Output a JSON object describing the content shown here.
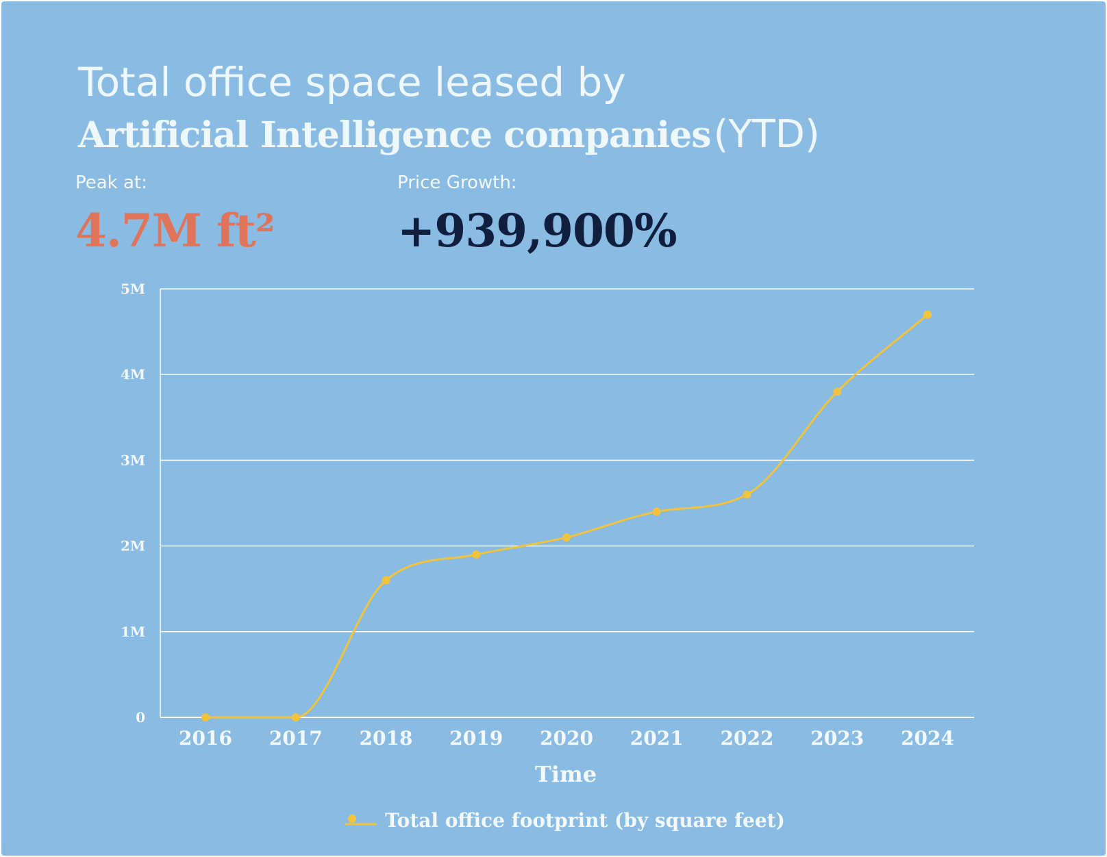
{
  "header": {
    "title_line1": "Total office space leased by",
    "title_bold": "Artificial Intelligence companies",
    "title_suffix": "(YTD)"
  },
  "stats": {
    "peak_label": "Peak at:",
    "peak_value": "4.7M ft²",
    "growth_label": "Price Growth:",
    "growth_value": "+939,900%"
  },
  "colors": {
    "background": "#89bbe3",
    "line": "#f2c43c",
    "peak": "#e0745a",
    "growth": "#0f1f3d",
    "text": "#f2f8fb"
  },
  "chart_data": {
    "type": "line",
    "title": "",
    "xlabel": "Time",
    "ylabel": "",
    "categories": [
      "2016",
      "2017",
      "2018",
      "2019",
      "2020",
      "2021",
      "2022",
      "2023",
      "2024"
    ],
    "y_ticks": [
      0,
      1000000,
      2000000,
      3000000,
      4000000,
      5000000
    ],
    "y_tick_labels": [
      "0",
      "1M",
      "2M",
      "3M",
      "4M",
      "5M"
    ],
    "ylim": [
      0,
      5000000
    ],
    "grid": true,
    "legend": "bottom",
    "series": [
      {
        "name": "Total office footprint (by square feet)",
        "values": [
          0,
          0,
          1600000,
          1900000,
          2100000,
          2400000,
          2600000,
          3800000,
          4700000
        ]
      }
    ]
  }
}
